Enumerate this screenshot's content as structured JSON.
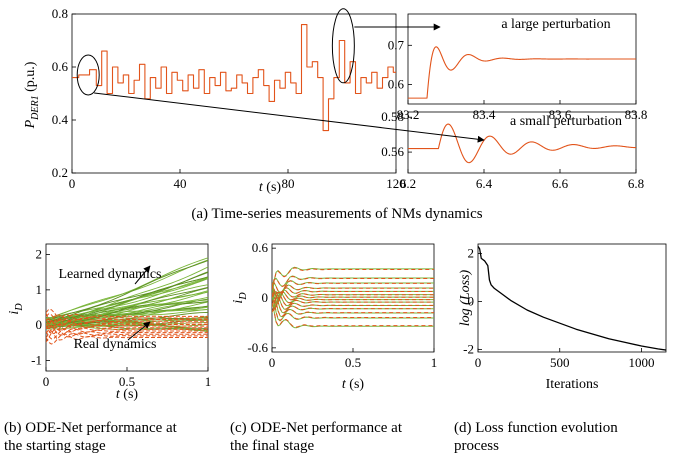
{
  "colors": {
    "real": "#e2541b",
    "learned": "#79b53a",
    "learned_dark": "#5c8f22",
    "axis": "#000000",
    "loss": "#000000"
  },
  "captions": {
    "a": "(a) Time-series measurements of NMs dynamics",
    "b1": "(b) ODE-Net performance at",
    "b2": "the starting stage",
    "c1": "(c) ODE-Net performance at",
    "c2": "the final stage",
    "d1": "(d) Loss function evolution",
    "d2": "process"
  },
  "chart_data": [
    {
      "id": "main",
      "type": "line",
      "ylabel": "P",
      "ylabel_sub": "DER1",
      "ylabel_unit": "(p.u.)",
      "xlabel": "t (s)",
      "xlim": [
        0,
        120
      ],
      "ylim": [
        0.2,
        0.8
      ],
      "xticks": [
        "0",
        "40",
        "80",
        "120"
      ],
      "yticks": [
        "0.2",
        "0.4",
        "0.6",
        "0.8"
      ],
      "x": [
        0,
        5,
        8,
        10,
        12,
        14,
        16,
        18,
        20,
        22,
        24,
        26,
        28,
        30,
        32,
        34,
        36,
        38,
        40,
        42,
        44,
        46,
        48,
        50,
        52,
        54,
        56,
        58,
        60,
        62,
        64,
        66,
        68,
        70,
        72,
        74,
        76,
        78,
        80,
        82,
        84,
        86,
        88,
        90,
        92,
        94,
        96,
        98,
        100,
        102,
        104,
        106,
        108,
        110,
        112,
        114,
        116,
        118,
        120
      ],
      "y": [
        0.56,
        0.57,
        0.59,
        0.53,
        0.66,
        0.5,
        0.6,
        0.54,
        0.57,
        0.5,
        0.55,
        0.61,
        0.48,
        0.56,
        0.52,
        0.6,
        0.5,
        0.58,
        0.55,
        0.51,
        0.57,
        0.52,
        0.59,
        0.5,
        0.56,
        0.53,
        0.58,
        0.51,
        0.52,
        0.57,
        0.54,
        0.5,
        0.56,
        0.59,
        0.53,
        0.47,
        0.55,
        0.52,
        0.58,
        0.54,
        0.5,
        0.76,
        0.6,
        0.62,
        0.56,
        0.36,
        0.48,
        0.56,
        0.7,
        0.54,
        0.62,
        0.5,
        0.56,
        0.54,
        0.58,
        0.52,
        0.56,
        0.6,
        0.58
      ]
    },
    {
      "id": "large",
      "type": "line",
      "annotation": "a large perturbation",
      "xlim": [
        83.2,
        83.8
      ],
      "ylim": [
        0.55,
        0.78
      ],
      "xticks": [
        "83.2",
        "83.4",
        "83.6",
        "83.8"
      ],
      "yticks": [
        "0.6",
        "0.7"
      ],
      "step_time": 83.25,
      "pre": 0.565,
      "post": 0.665,
      "amplitude": 0.085,
      "period": 0.09,
      "damping": 18,
      "series": [
        {
          "x": [
            83.2,
            83.8
          ],
          "y": [
            0.565,
            0.665
          ]
        }
      ]
    },
    {
      "id": "small",
      "type": "line",
      "annotation": "a small perturbation",
      "xlim": [
        6.2,
        6.8
      ],
      "ylim": [
        0.548,
        0.583
      ],
      "xticks": [
        "6.2",
        "6.4",
        "6.6",
        "6.8"
      ],
      "yticks": [
        "0.56",
        "0.58"
      ],
      "step_time": 6.28,
      "pre": 0.562,
      "post": 0.563,
      "amplitude": 0.016,
      "period": 0.11,
      "damping": 7,
      "series": [
        {
          "x": [
            6.2,
            6.8
          ],
          "y": [
            0.562,
            0.563
          ]
        }
      ]
    },
    {
      "id": "start",
      "type": "line",
      "ylabel": "i",
      "ylabel_sub": "D",
      "xlabel": "t (s)",
      "xlim": [
        0,
        1
      ],
      "ylim": [
        -1.3,
        2.3
      ],
      "xticks": [
        "0",
        "0.5",
        "1"
      ],
      "yticks": [
        "-1",
        "0",
        "1",
        "2"
      ],
      "annotations": [
        "Learned dynamics",
        "Real dynamics"
      ],
      "learned_final_range": [
        -0.2,
        2.0
      ],
      "real_band": [
        -0.35,
        0.25
      ]
    },
    {
      "id": "final",
      "type": "line",
      "ylabel": "i",
      "ylabel_sub": "D",
      "xlabel": "t (s)",
      "xlim": [
        0,
        1
      ],
      "ylim": [
        -0.65,
        0.65
      ],
      "xticks": [
        "0",
        "0.5",
        "1"
      ],
      "yticks": [
        "-0.6",
        "0",
        "0.6"
      ],
      "levels": [
        0.35,
        0.24,
        0.18,
        0.12,
        0.08,
        0.04,
        0.01,
        -0.02,
        -0.05,
        -0.09,
        -0.13,
        -0.18,
        -0.24,
        -0.34
      ]
    },
    {
      "id": "loss",
      "type": "line",
      "ylabel": "log (Loss)",
      "xlabel": "Iterations",
      "xlim": [
        0,
        1150
      ],
      "ylim": [
        -2.1,
        2.4
      ],
      "xticks": [
        "0",
        "500",
        "1000"
      ],
      "yticks": [
        "-2",
        "0",
        "2"
      ],
      "x": [
        0,
        10,
        20,
        40,
        60,
        70,
        80,
        100,
        150,
        200,
        300,
        400,
        500,
        600,
        700,
        800,
        900,
        1000,
        1100,
        1150
      ],
      "y": [
        2.3,
        2.2,
        1.8,
        1.7,
        1.5,
        0.9,
        0.7,
        0.55,
        0.3,
        0.05,
        -0.35,
        -0.65,
        -0.9,
        -1.15,
        -1.35,
        -1.55,
        -1.7,
        -1.85,
        -1.97,
        -2.02
      ]
    }
  ]
}
